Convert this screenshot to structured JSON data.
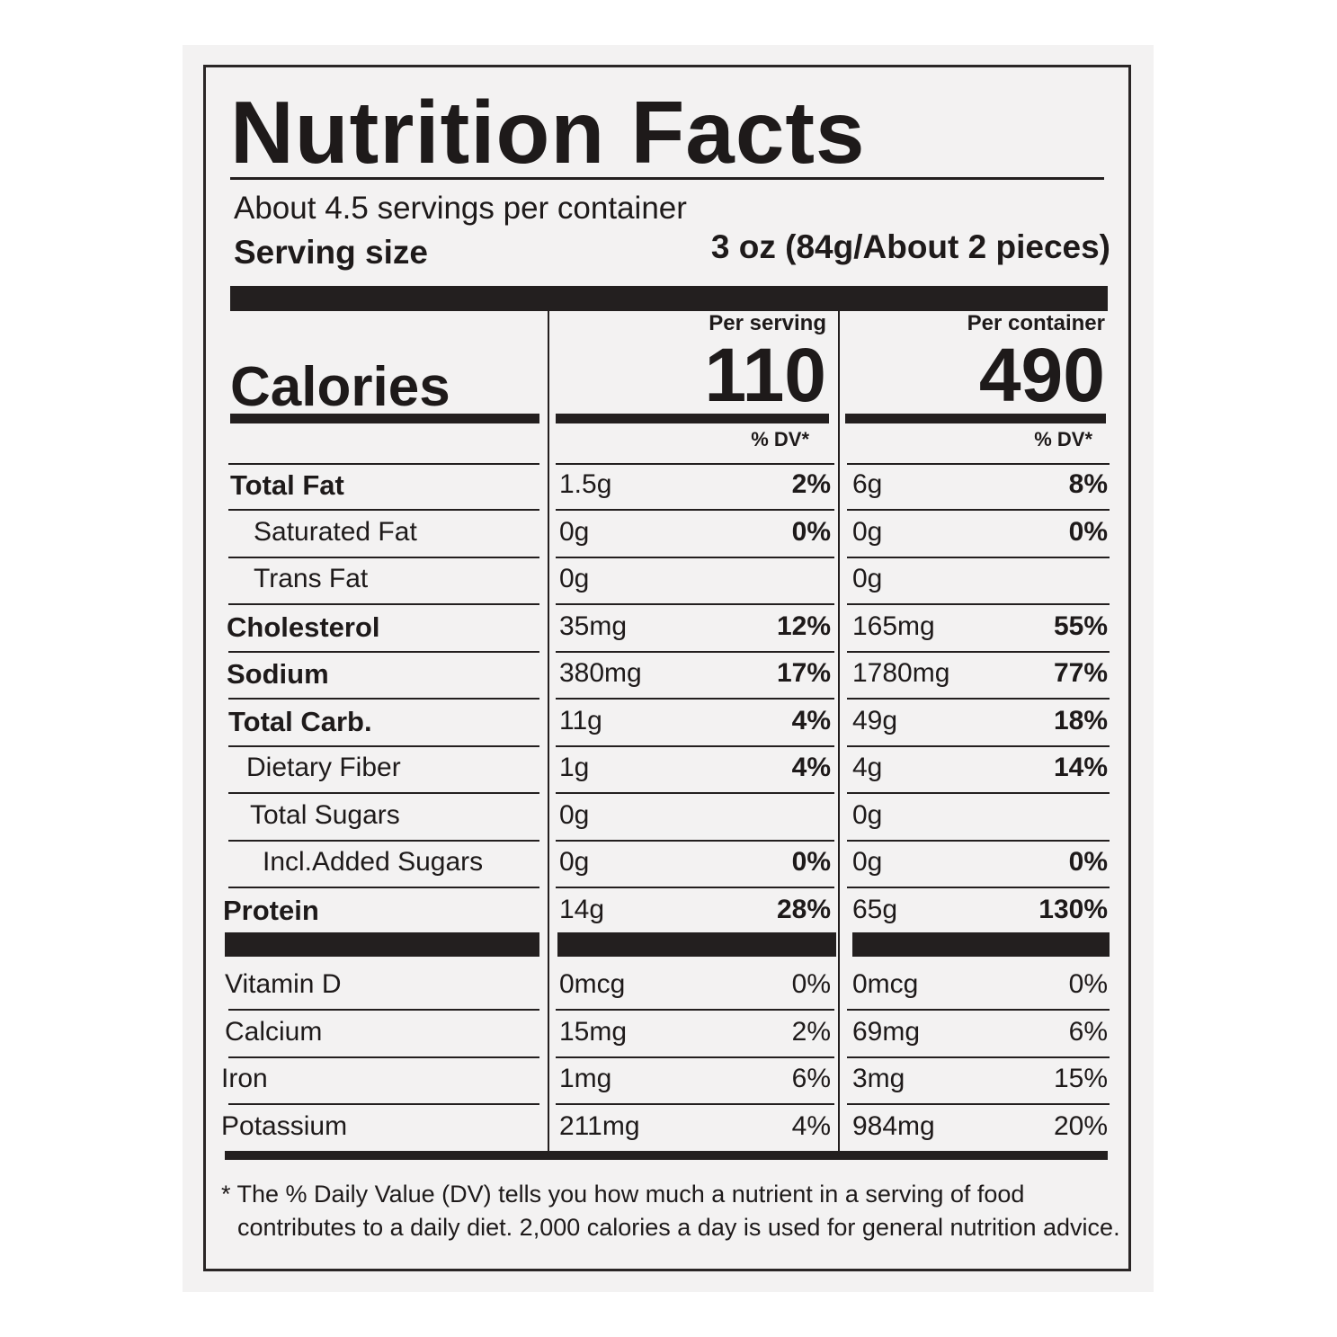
{
  "title": "Nutrition Facts",
  "servings": "About 4.5 servings per container",
  "serving_size": {
    "label": "Serving size",
    "value": "3 oz (84g/About 2 pieces)"
  },
  "calories": {
    "label": "Calories",
    "per_serving_header": "Per serving",
    "per_serving": "110",
    "per_container_header": "Per container",
    "per_container": "490"
  },
  "dv_headers": [
    "% DV*",
    "% DV*"
  ],
  "nutrients": [
    {
      "name": "Total Fat",
      "serving_amount": "1.5g",
      "serving_dv": "2%",
      "container_amount": "6g",
      "container_dv": "8%"
    },
    {
      "name": "Saturated Fat",
      "serving_amount": "0g",
      "serving_dv": "0%",
      "container_amount": "0g",
      "container_dv": "0%"
    },
    {
      "name": "Trans Fat",
      "serving_amount": "0g",
      "container_amount": "0g"
    },
    {
      "name": "Cholesterol",
      "serving_amount": "35mg",
      "serving_dv": "12%",
      "container_amount": "165mg",
      "container_dv": "55%"
    },
    {
      "name": "Sodium",
      "serving_amount": "380mg",
      "serving_dv": "17%",
      "container_amount": "1780mg",
      "container_dv": "77%"
    },
    {
      "name": "Total Carb.",
      "serving_amount": "11g",
      "serving_dv": "4%",
      "container_amount": "49g",
      "container_dv": "18%"
    },
    {
      "name": "Dietary Fiber",
      "serving_amount": "1g",
      "serving_dv": "4%",
      "container_amount": "4g",
      "container_dv": "14%"
    },
    {
      "name": "Total Sugars",
      "serving_amount": "0g",
      "container_amount": "0g"
    },
    {
      "name": "Incl.Added Sugars",
      "serving_amount": "0g",
      "serving_dv": "0%",
      "container_amount": "0g",
      "container_dv": "0%"
    },
    {
      "name": "Protein",
      "serving_amount": "14g",
      "serving_dv": "28%",
      "container_amount": "65g",
      "container_dv": "130%"
    }
  ],
  "vitamins": [
    {
      "name": "Vitamin D",
      "serving_amount": "0mcg",
      "serving_dv": "0%",
      "container_amount": "0mcg",
      "container_dv": "0%"
    },
    {
      "name": "Calcium",
      "serving_amount": "15mg",
      "serving_dv": "2%",
      "container_amount": "69mg",
      "container_dv": "6%"
    },
    {
      "name": "Iron",
      "serving_amount": "1mg",
      "serving_dv": "6%",
      "container_amount": "3mg",
      "container_dv": "15%"
    },
    {
      "name": "Potassium",
      "serving_amount": "211mg",
      "serving_dv": "4%",
      "container_amount": "984mg",
      "container_dv": "20%"
    }
  ],
  "footnote": [
    "* The % Daily Value (DV) tells you how much a nutrient in a serving of food",
    "contributes to a daily diet. 2,000 calories a day is used for general nutrition advice."
  ]
}
